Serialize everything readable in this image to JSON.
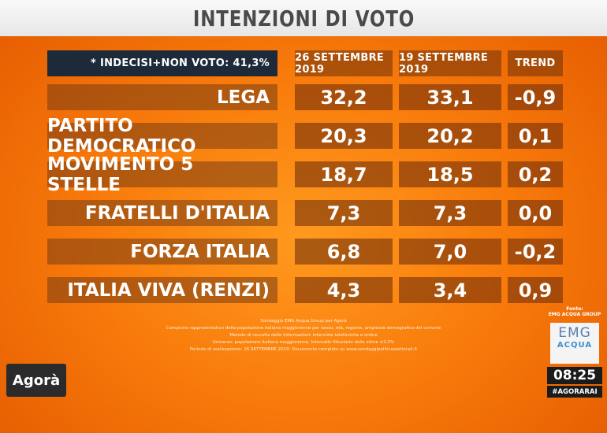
{
  "title": "INTENZIONI DI VOTO",
  "chart_data": {
    "type": "table",
    "note": "* INDECISI+NON VOTO: 41,3%",
    "columns": [
      "26 SETTEMBRE 2019",
      "19 SETTEMBRE 2019",
      "TREND"
    ],
    "rows": [
      {
        "party": "LEGA",
        "values": [
          "32,2",
          "33,1",
          "-0,9"
        ]
      },
      {
        "party": "PARTITO DEMOCRATICO",
        "values": [
          "20,3",
          "20,2",
          "0,1"
        ]
      },
      {
        "party": "MOVIMENTO 5 STELLE",
        "values": [
          "18,7",
          "18,5",
          "0,2"
        ]
      },
      {
        "party": "FRATELLI D'ITALIA",
        "values": [
          "7,3",
          "7,3",
          "0,0"
        ]
      },
      {
        "party": "FORZA ITALIA",
        "values": [
          "6,8",
          "7,0",
          "-0,2"
        ]
      },
      {
        "party": "ITALIA VIVA (RENZI)",
        "values": [
          "4,3",
          "3,4",
          "0,9"
        ]
      }
    ]
  },
  "footer": {
    "fine_print": [
      "Sondaggio EMG Acqua Group per Agorà",
      "Campione rappresentativo della popolazione italiana maggiorenne per sesso, età, regione, ampiezza demografica del comune",
      "Metodo di raccolta delle informazioni: interviste telefoniche e online",
      "Universo: popolazione italiana maggiorenne. Intervallo fiduciario delle stime ±2,5%",
      "Periodo di realizzazione: 26 SETTEMBRE 2019. Documento completo su www.sondaggipoliticoelettorali.it"
    ],
    "source_label": "Fonte:",
    "source_name": "EMG ACQUA GROUP",
    "emg_logo_top": "EMG",
    "emg_logo_bottom": "ACQUA",
    "channel_logo": "Agorà",
    "clock": "08:25",
    "hashtag": "#AGORARAI"
  }
}
